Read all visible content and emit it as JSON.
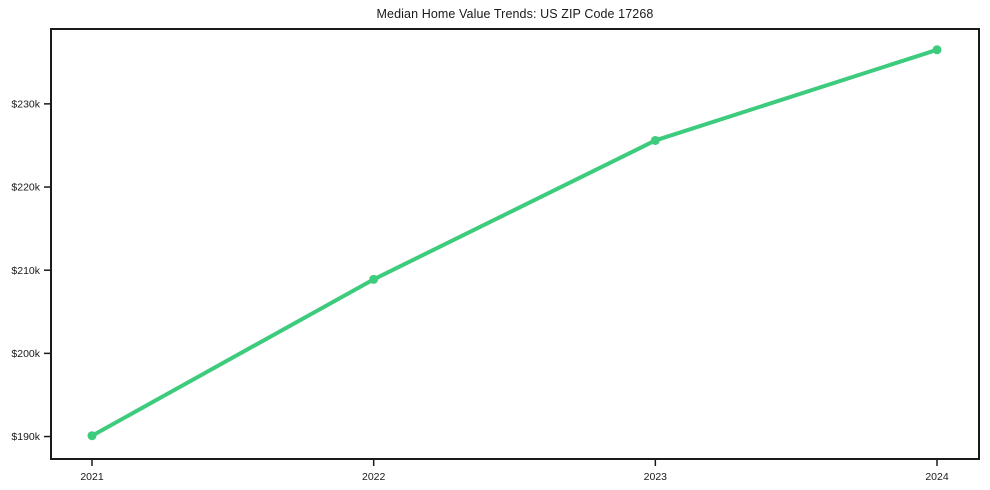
{
  "chart_data": {
    "type": "line",
    "title": "Median Home Value Trends: US ZIP Code 17268",
    "categories": [
      "2021",
      "2022",
      "2023",
      "2024"
    ],
    "values": [
      190100,
      208900,
      225600,
      236500
    ],
    "yticks": [
      {
        "label": "$190k",
        "value": 190000
      },
      {
        "label": "$200k",
        "value": 200000
      },
      {
        "label": "$210k",
        "value": 210000
      },
      {
        "label": "$220k",
        "value": 220000
      },
      {
        "label": "$230k",
        "value": 230000
      }
    ],
    "ylim": [
      187300,
      239000
    ],
    "xlabel": "",
    "ylabel": "",
    "grid": false,
    "legend": "none",
    "line_color": "#3dcb7d",
    "marker": "circle",
    "marker_color": "#3dcb7d",
    "frame_color": "#1a1a1a",
    "text_color": "#1a1a1a",
    "background_color": "#ffffff"
  }
}
